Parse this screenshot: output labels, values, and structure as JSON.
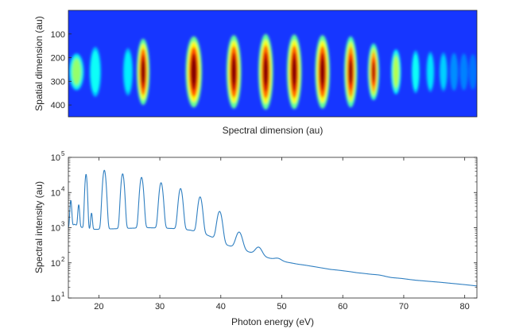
{
  "chart_data": [
    {
      "type": "heatmap",
      "title": "",
      "xlabel": "Spectral dimension (au)",
      "ylabel": "Spatial dimension (au)",
      "ylim": [
        0,
        450
      ],
      "y_ticks": [
        100,
        200,
        300,
        400
      ],
      "y_reversed": true,
      "x_ticks_visible": false,
      "colormap": "jet",
      "background_color": "#1636ff",
      "peak_center_y": 260,
      "lines": [
        {
          "x": 0.02,
          "intensity": 0.55,
          "half_height": 78,
          "width": 0.009
        },
        {
          "x": 0.066,
          "intensity": 0.45,
          "half_height": 105,
          "width": 0.007
        },
        {
          "x": 0.146,
          "intensity": 0.4,
          "half_height": 100,
          "width": 0.006
        },
        {
          "x": 0.183,
          "intensity": 0.95,
          "half_height": 140,
          "width": 0.008
        },
        {
          "x": 0.307,
          "intensity": 1.0,
          "half_height": 150,
          "width": 0.01
        },
        {
          "x": 0.405,
          "intensity": 0.97,
          "half_height": 155,
          "width": 0.009
        },
        {
          "x": 0.483,
          "intensity": 0.96,
          "half_height": 160,
          "width": 0.009
        },
        {
          "x": 0.553,
          "intensity": 0.97,
          "half_height": 158,
          "width": 0.009
        },
        {
          "x": 0.622,
          "intensity": 0.97,
          "half_height": 155,
          "width": 0.009
        },
        {
          "x": 0.691,
          "intensity": 0.9,
          "half_height": 150,
          "width": 0.008
        },
        {
          "x": 0.747,
          "intensity": 0.85,
          "half_height": 120,
          "width": 0.007
        },
        {
          "x": 0.802,
          "intensity": 0.6,
          "half_height": 95,
          "width": 0.006
        },
        {
          "x": 0.85,
          "intensity": 0.45,
          "half_height": 90,
          "width": 0.005
        },
        {
          "x": 0.886,
          "intensity": 0.38,
          "half_height": 85,
          "width": 0.004
        },
        {
          "x": 0.918,
          "intensity": 0.33,
          "half_height": 82,
          "width": 0.004
        },
        {
          "x": 0.944,
          "intensity": 0.28,
          "half_height": 80,
          "width": 0.004
        },
        {
          "x": 0.968,
          "intensity": 0.24,
          "half_height": 78,
          "width": 0.0035
        },
        {
          "x": 0.99,
          "intensity": 0.2,
          "half_height": 75,
          "width": 0.0035
        }
      ]
    },
    {
      "type": "line",
      "title": "",
      "xlabel": "Photon energy (eV)",
      "ylabel": "Spectral intensity (au)",
      "xlim": [
        15,
        82
      ],
      "ylim": [
        10,
        100000
      ],
      "yscale": "log",
      "x_ticks": [
        20,
        30,
        40,
        50,
        60,
        70,
        80
      ],
      "y_ticks": [
        {
          "value": 10,
          "base": "10",
          "exp": "1"
        },
        {
          "value": 100,
          "base": "10",
          "exp": "2"
        },
        {
          "value": 1000,
          "base": "10",
          "exp": "3"
        },
        {
          "value": 10000,
          "base": "10",
          "exp": "4"
        },
        {
          "value": 100000,
          "base": "10",
          "exp": "5"
        }
      ],
      "grid": false,
      "line_color": "#2f7fc1",
      "baseline": [
        [
          15,
          1000
        ],
        [
          16,
          1250
        ],
        [
          17,
          1050
        ],
        [
          18,
          900
        ],
        [
          20,
          900
        ],
        [
          24,
          950
        ],
        [
          28,
          1000
        ],
        [
          32,
          950
        ],
        [
          35,
          850
        ],
        [
          37,
          700
        ],
        [
          39,
          500
        ],
        [
          41,
          320
        ],
        [
          44,
          220
        ],
        [
          47,
          150
        ],
        [
          50,
          110
        ],
        [
          54,
          85
        ],
        [
          58,
          65
        ],
        [
          63,
          52
        ],
        [
          68,
          38
        ],
        [
          72,
          32
        ],
        [
          76,
          28
        ],
        [
          80,
          24
        ],
        [
          82,
          22
        ]
      ],
      "peaks": [
        {
          "x": 15.4,
          "y": 6000,
          "w": 0.12
        },
        {
          "x": 16.7,
          "y": 4500,
          "w": 0.12
        },
        {
          "x": 17.9,
          "y": 33000,
          "w": 0.15
        },
        {
          "x": 18.8,
          "y": 2600,
          "w": 0.12
        },
        {
          "x": 20.9,
          "y": 43000,
          "w": 0.22
        },
        {
          "x": 23.9,
          "y": 34000,
          "w": 0.22
        },
        {
          "x": 27.0,
          "y": 27000,
          "w": 0.24
        },
        {
          "x": 30.2,
          "y": 19000,
          "w": 0.26
        },
        {
          "x": 33.4,
          "y": 13000,
          "w": 0.28
        },
        {
          "x": 36.6,
          "y": 7500,
          "w": 0.3
        },
        {
          "x": 39.8,
          "y": 2900,
          "w": 0.35
        },
        {
          "x": 43.0,
          "y": 750,
          "w": 0.45
        },
        {
          "x": 46.2,
          "y": 280,
          "w": 0.5
        },
        {
          "x": 49.4,
          "y": 135,
          "w": 0.55
        },
        {
          "x": 52.6,
          "y": 92,
          "w": 0.6
        },
        {
          "x": 55.9,
          "y": 75,
          "w": 0.65
        },
        {
          "x": 59.2,
          "y": 62,
          "w": 0.7
        },
        {
          "x": 62.5,
          "y": 52,
          "w": 0.75
        },
        {
          "x": 66.0,
          "y": 45,
          "w": 0.8
        },
        {
          "x": 69.6,
          "y": 36,
          "w": 0.85
        }
      ]
    }
  ]
}
